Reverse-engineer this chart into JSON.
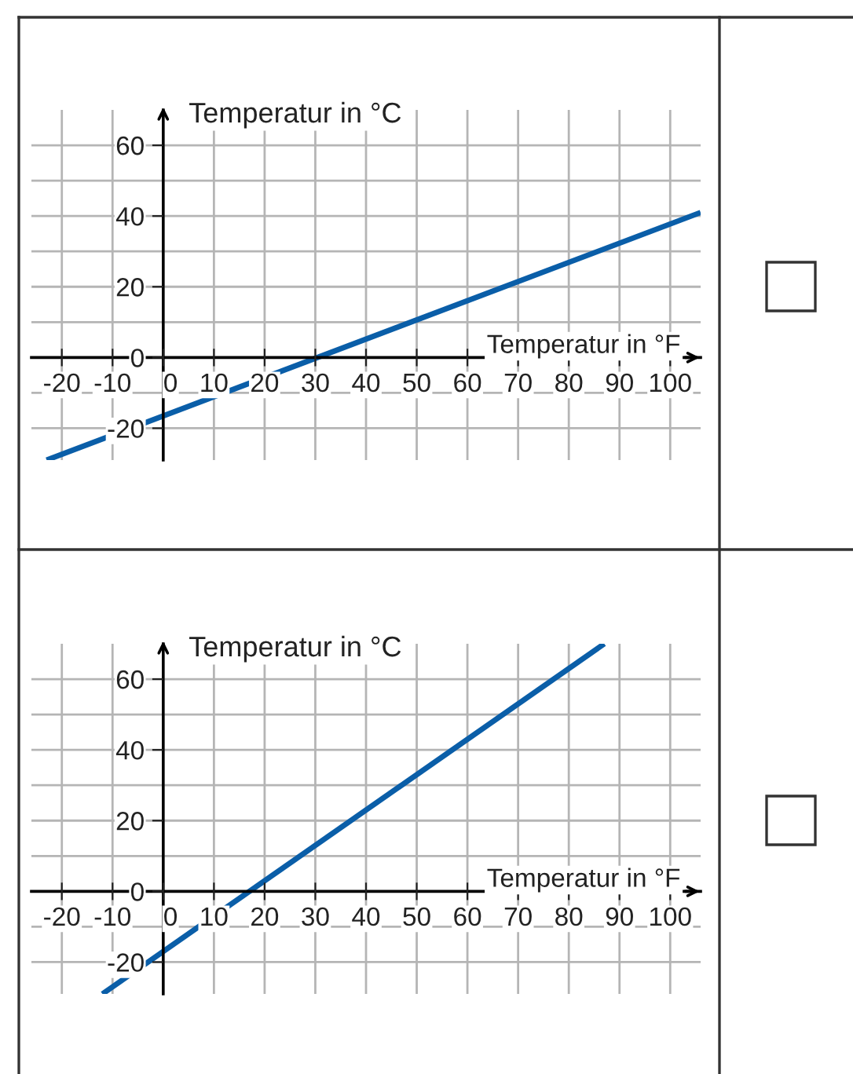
{
  "chart_data": [
    {
      "type": "line",
      "xlabel": "Temperatur in °F",
      "ylabel": "Temperatur in °C",
      "xlim": [
        -26,
        106
      ],
      "ylim": [
        -29,
        70
      ],
      "xticks": [
        -20,
        -10,
        0,
        10,
        20,
        30,
        40,
        50,
        60,
        70,
        80,
        90,
        100
      ],
      "yticks": [
        -20,
        {
          "value": -10,
          "label": null
        },
        0,
        {
          "value": 10,
          "label": null
        },
        20,
        {
          "value": 30,
          "label": null
        },
        40,
        {
          "value": 50,
          "label": null
        },
        60
      ],
      "grid": true,
      "series": [
        {
          "color": "#0a5ea8",
          "x": [
            -23,
            106
          ],
          "values": [
            -29,
            41
          ]
        }
      ]
    },
    {
      "type": "line",
      "xlabel": "Temperatur in °F",
      "ylabel": "Temperatur in °C",
      "xlim": [
        -26,
        106
      ],
      "ylim": [
        -29,
        70
      ],
      "xticks": [
        -20,
        -10,
        0,
        10,
        20,
        30,
        40,
        50,
        60,
        70,
        80,
        90,
        100
      ],
      "yticks": [
        -20,
        {
          "value": -10,
          "label": null
        },
        0,
        {
          "value": 10,
          "label": null
        },
        20,
        {
          "value": 30,
          "label": null
        },
        40,
        {
          "value": 50,
          "label": null
        },
        60
      ],
      "grid": true,
      "series": [
        {
          "color": "#0a5ea8",
          "x": [
            -12,
            87
          ],
          "values": [
            -29,
            70
          ]
        }
      ]
    }
  ]
}
